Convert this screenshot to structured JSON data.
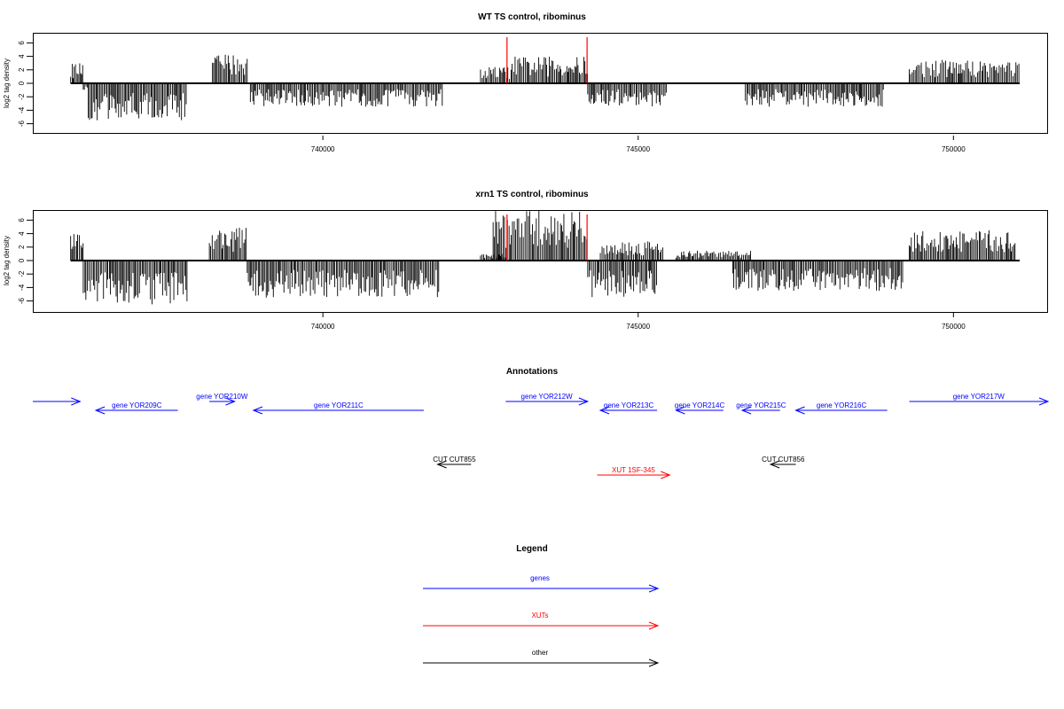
{
  "chart_data": [
    {
      "type": "bar",
      "title": "WT TS control, ribominus",
      "ylabel": "log2 tag density",
      "xlim": [
        735400,
        751500
      ],
      "ylim": [
        -7.5,
        7.5
      ],
      "yticks": [
        -6,
        -4,
        -2,
        0,
        2,
        4,
        6
      ],
      "xticks": [
        740000,
        745000,
        750000
      ],
      "grid": false,
      "series": [
        {
          "style": "vertical-lines",
          "color": "#000000",
          "bars": [
            {
              "from": 736000,
              "to": 736200,
              "v": 3.0
            },
            {
              "from": 736200,
              "to": 736280,
              "v": -1.0
            },
            {
              "from": 736280,
              "to": 737850,
              "v": -5.5
            },
            {
              "from": 738250,
              "to": 738800,
              "v": 4.5
            },
            {
              "from": 738850,
              "to": 741900,
              "v": -3.5
            },
            {
              "from": 742500,
              "to": 743000,
              "v": 2.5
            },
            {
              "from": 743000,
              "to": 744200,
              "v": 4.0
            },
            {
              "from": 744200,
              "to": 745450,
              "v": -3.5
            },
            {
              "from": 746700,
              "to": 748900,
              "v": -3.5
            },
            {
              "from": 749300,
              "to": 751050,
              "v": 3.5
            }
          ]
        },
        {
          "style": "marker-lines",
          "color": "#ff0000",
          "x": [
            742920,
            744190
          ]
        }
      ]
    },
    {
      "type": "bar",
      "title": "xrn1 TS control, ribominus",
      "ylabel": "log2 tag density",
      "xlim": [
        735400,
        751500
      ],
      "ylim": [
        -7.5,
        7.5
      ],
      "yticks": [
        -6,
        -4,
        -2,
        0,
        2,
        4,
        6
      ],
      "xticks": [
        740000,
        745000,
        750000
      ],
      "grid": false,
      "series": [
        {
          "style": "vertical-lines",
          "color": "#000000",
          "bars": [
            {
              "from": 736000,
              "to": 736200,
              "v": 4.0
            },
            {
              "from": 736200,
              "to": 737850,
              "v": -6.5
            },
            {
              "from": 738200,
              "to": 738800,
              "v": 5.0
            },
            {
              "from": 738800,
              "to": 741850,
              "v": -5.5
            },
            {
              "from": 742500,
              "to": 742900,
              "v": 1.0
            },
            {
              "from": 742700,
              "to": 744200,
              "v": 7.5
            },
            {
              "from": 744200,
              "to": 745300,
              "v": -5.5
            },
            {
              "from": 744400,
              "to": 745400,
              "v": 3.0
            },
            {
              "from": 745600,
              "to": 746800,
              "v": 1.5
            },
            {
              "from": 746500,
              "to": 749200,
              "v": -4.5
            },
            {
              "from": 749300,
              "to": 751000,
              "v": 4.5
            }
          ]
        },
        {
          "style": "marker-lines",
          "color": "#ff0000",
          "x": [
            742920,
            744190
          ]
        }
      ]
    }
  ],
  "annotations": {
    "title": "Annotations",
    "features": [
      {
        "label": "",
        "start": 735400,
        "end": 736150,
        "dir": 1,
        "row": 0,
        "color": "#0000ff"
      },
      {
        "label": "gene YOR209C",
        "start": 736400,
        "end": 737700,
        "dir": -1,
        "row": 1,
        "color": "#0000ff"
      },
      {
        "label": "gene YOR210W",
        "start": 738200,
        "end": 738600,
        "dir": 1,
        "row": 0,
        "color": "#0000ff"
      },
      {
        "label": "gene YOR211C",
        "start": 738900,
        "end": 741600,
        "dir": -1,
        "row": 1,
        "color": "#0000ff"
      },
      {
        "label": "gene YOR212W",
        "start": 742900,
        "end": 744200,
        "dir": 1,
        "row": 0,
        "color": "#0000ff"
      },
      {
        "label": "gene YOR213C",
        "start": 744400,
        "end": 745300,
        "dir": -1,
        "row": 1,
        "color": "#0000ff"
      },
      {
        "label": "gene YOR214C",
        "start": 745600,
        "end": 746350,
        "dir": -1,
        "row": 1,
        "color": "#0000ff"
      },
      {
        "label": "gene YOR215C",
        "start": 746650,
        "end": 747250,
        "dir": -1,
        "row": 1,
        "color": "#0000ff"
      },
      {
        "label": "gene YOR216C",
        "start": 747500,
        "end": 748950,
        "dir": -1,
        "row": 1,
        "color": "#0000ff"
      },
      {
        "label": "gene YOR217W",
        "start": 749300,
        "end": 751650,
        "dir": 1,
        "row": 0,
        "color": "#0000ff"
      },
      {
        "label": "CUT CUT855",
        "start": 741820,
        "end": 742350,
        "dir": -1,
        "row": 2,
        "color": "#000000"
      },
      {
        "label": "XUT 1SF-345",
        "start": 744350,
        "end": 745500,
        "dir": 1,
        "row": 3,
        "color": "#ff0000"
      },
      {
        "label": "CUT CUT856",
        "start": 747100,
        "end": 747500,
        "dir": -1,
        "row": 2,
        "color": "#000000"
      }
    ]
  },
  "legend": {
    "title": "Legend",
    "items": [
      {
        "label": "genes",
        "color": "#0000ff"
      },
      {
        "label": "XUTs",
        "color": "#ff0000"
      },
      {
        "label": "other",
        "color": "#000000"
      }
    ]
  }
}
